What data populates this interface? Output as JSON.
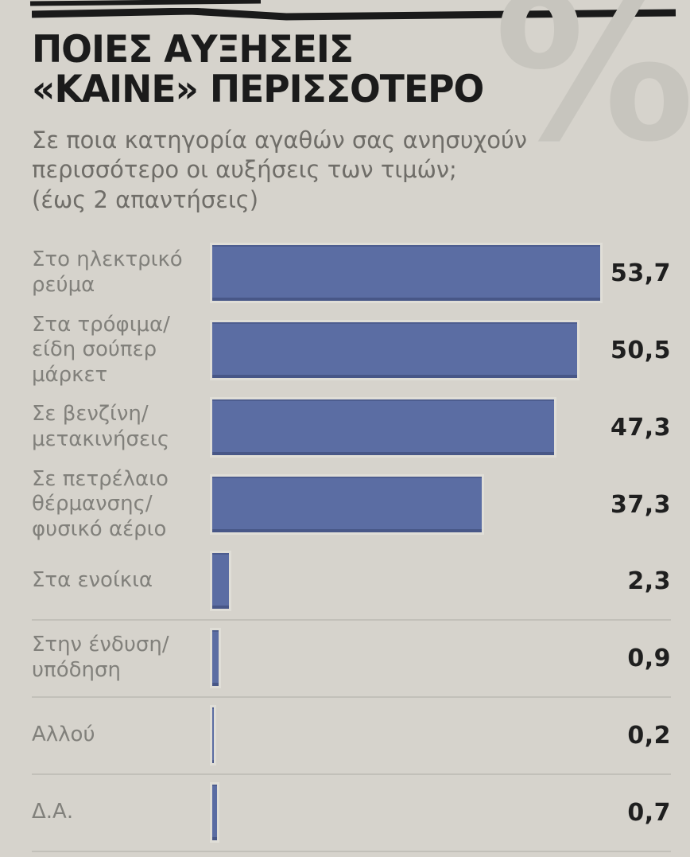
{
  "header": {
    "title_line1": "ΠΟΙΕΣ ΑΥΞΗΣΕΙΣ",
    "title_line2": "«ΚΑΙΝΕ» ΠΕΡΙΣΣΟΤΕΡΟ",
    "watermark_symbol": "%",
    "subtitle": "Σε ποια κατηγορία αγαθών σας ανησυχούν περισσότερο οι αυξήσεις των τιμών;",
    "subtitle_note": "(έως 2 απαντήσεις)"
  },
  "chart_data": {
    "type": "bar",
    "orientation": "horizontal",
    "title": "ΠΟΙΕΣ ΑΥΞΗΣΕΙΣ «ΚΑΙΝΕ» ΠΕΡΙΣΣΟΤΕΡΟ",
    "subtitle": "Σε ποια κατηγορία αγαθών σας ανησυχούν περισσότερο οι αυξήσεις των τιμών; (έως 2 απαντήσεις)",
    "unit": "%",
    "categories": [
      "Στο ηλεκτρικό ρεύμα",
      "Στα τρόφιμα/ είδη σούπερ μάρκετ",
      "Σε βενζίνη/ μετακινήσεις",
      "Σε πετρέλαιο θέρμανσης/ φυσικό αέριο",
      "Στα ενοίκια",
      "Στην ένδυση/ υπόδηση",
      "Αλλού",
      "Δ.Α."
    ],
    "values": [
      53.7,
      50.5,
      47.3,
      37.3,
      2.3,
      0.9,
      0.2,
      0.7
    ],
    "value_labels": [
      "53,7",
      "50,5",
      "47,3",
      "37,3",
      "2,3",
      "0,9",
      "0,2",
      "0,7"
    ],
    "xlim": [
      0,
      55
    ],
    "grid": false,
    "legend": false,
    "bar_color": "#5b6da3",
    "background_color": "#d6d3cc"
  }
}
